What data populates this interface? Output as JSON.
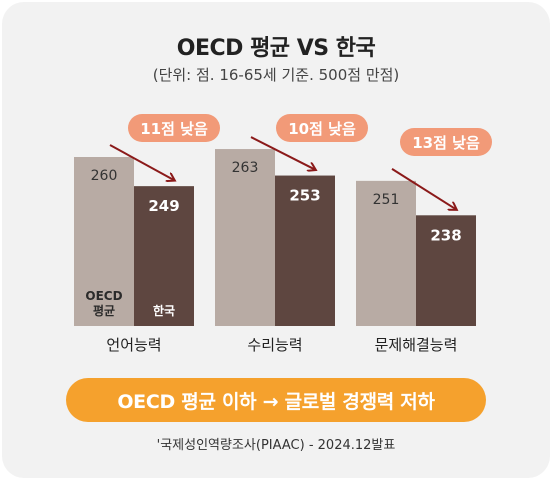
{
  "header": {
    "title": "OECD 평균 VS 한국",
    "subtitle": "(단위: 점. 16-65세 기준. 500점 만점)"
  },
  "chart_data": {
    "type": "bar",
    "categories": [
      "언어능력",
      "수리능력",
      "문제해결능력"
    ],
    "series": [
      {
        "name": "OECD 평균",
        "values": [
          260,
          263,
          251
        ]
      },
      {
        "name": "한국",
        "values": [
          249,
          253,
          238
        ]
      }
    ],
    "series_labels_in_bar": [
      "OECD\n평균",
      "한국"
    ],
    "annotations": [
      "11점 낮음",
      "10점 낮음",
      "13점 낮음"
    ],
    "colors": {
      "oecd": "#b8aba4",
      "korea": "#5e4640",
      "annotation_pill": "#f29a78",
      "arrow": "#8b1a1a",
      "card_background": "#f2f2f2"
    }
  },
  "banner": {
    "text": "OECD 평균 이하 → 글로벌 경쟁력 저하",
    "color": "#f5a12d"
  },
  "footer": {
    "source": "'국제성인역량조사(PIAAC) - 2024.12발표"
  }
}
